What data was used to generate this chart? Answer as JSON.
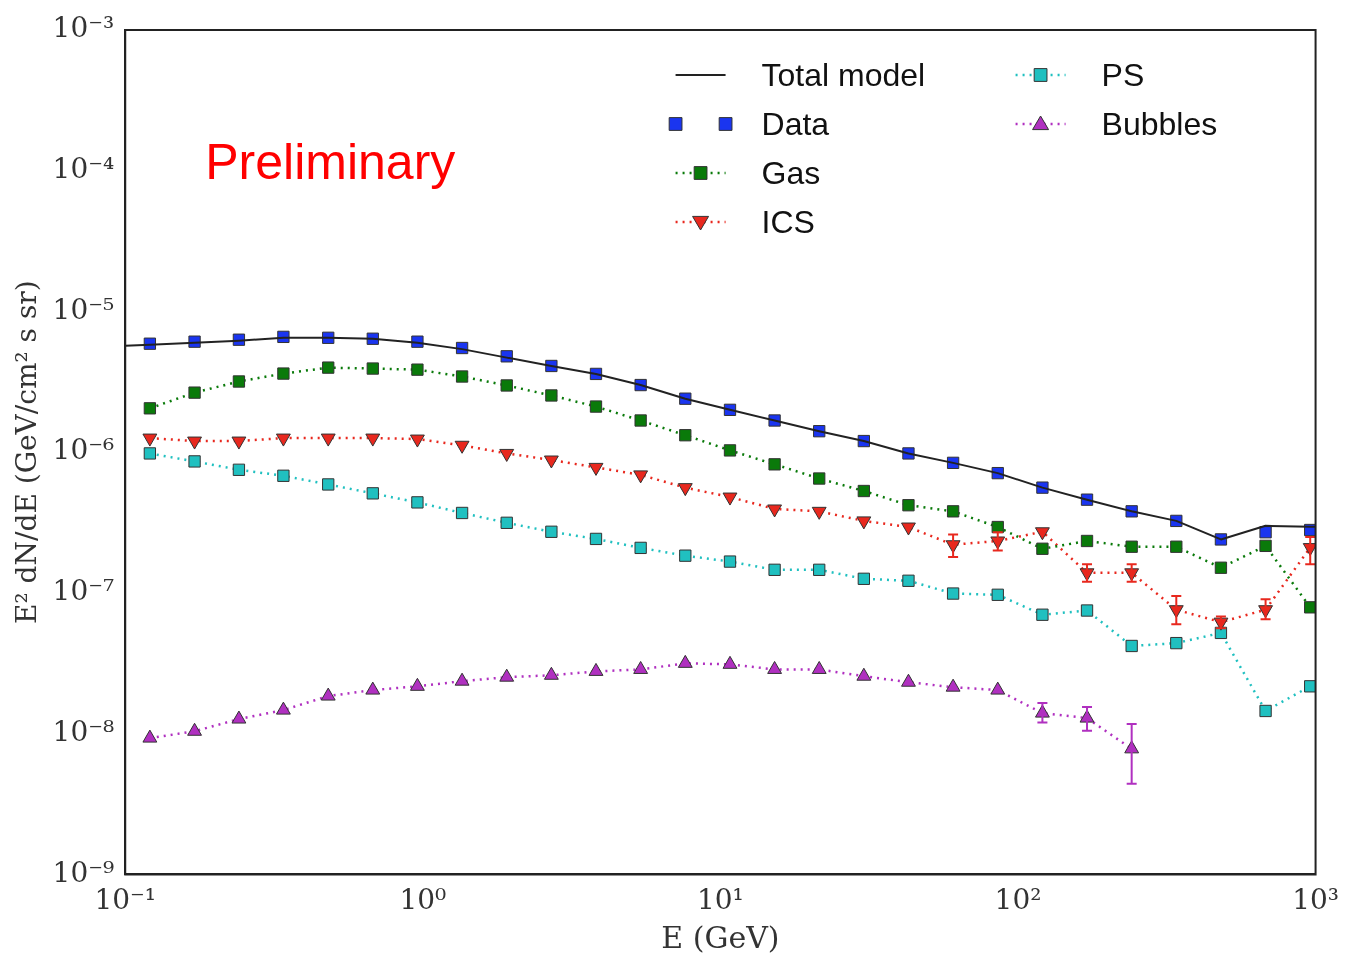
{
  "chart_data": {
    "type": "line",
    "xlabel": "E (GeV)",
    "ylabel": "E² dN/dE (GeV/cm² s sr)",
    "log": "xy",
    "grid": false,
    "legend": "top right",
    "xlim": [
      0.1,
      1000
    ],
    "ylim": [
      1e-09,
      0.001
    ],
    "xticks": [
      {
        "value": 0.1,
        "label": "10⁻¹"
      },
      {
        "value": 1,
        "label": "10⁰"
      },
      {
        "value": 10,
        "label": "10¹"
      },
      {
        "value": 100,
        "label": "10²"
      },
      {
        "value": 1000,
        "label": "10³"
      }
    ],
    "yticks": [
      {
        "value": 1e-09,
        "label": "10⁻⁹"
      },
      {
        "value": 1e-08,
        "label": "10⁻⁸"
      },
      {
        "value": 1e-07,
        "label": "10⁻⁷"
      },
      {
        "value": 1e-06,
        "label": "10⁻⁶"
      },
      {
        "value": 1e-05,
        "label": "10⁻⁵"
      },
      {
        "value": 0.0001,
        "label": "10⁻⁴"
      },
      {
        "value": 0.001,
        "label": "10⁻³"
      }
    ],
    "x": [
      0.121,
      0.171,
      0.241,
      0.34,
      0.481,
      0.679,
      0.959,
      1.355,
      1.914,
      2.704,
      3.819,
      5.395,
      7.621,
      10.77,
      15.21,
      21.48,
      30.34,
      42.85,
      60.53,
      85.51,
      120.8,
      170.6,
      241,
      340.4,
      480.8,
      679.2,
      959.4
    ],
    "annotations": [
      "Preliminary"
    ],
    "series": [
      {
        "name": "Total model",
        "type": "line",
        "color": "#222222",
        "marker": "none",
        "line_style": "solid",
        "x": [
          0.1,
          0.121,
          0.171,
          0.241,
          0.34,
          0.481,
          0.679,
          0.959,
          1.355,
          1.914,
          2.704,
          3.819,
          5.395,
          7.621,
          10.77,
          15.21,
          21.48,
          30.34,
          42.85,
          60.53,
          85.51,
          120.8,
          170.6,
          241,
          340.4,
          480.8,
          679.2,
          959.4,
          1000
        ],
        "values": [
          5.7e-06,
          5.8e-06,
          6e-06,
          6.2e-06,
          6.5e-06,
          6.5e-06,
          6.4e-06,
          6e-06,
          5.4e-06,
          4.7e-06,
          4.1e-06,
          3.6e-06,
          3e-06,
          2.4e-06,
          2e-06,
          1.68e-06,
          1.41e-06,
          1.2e-06,
          9.8e-07,
          8.4e-07,
          7.1e-07,
          5.6e-07,
          4.6e-07,
          3.8e-07,
          3.25e-07,
          2.4e-07,
          3e-07,
          2.95e-07,
          2.95e-07
        ]
      },
      {
        "name": "Data",
        "type": "scatter",
        "color": "#1a35f0",
        "marker": "square",
        "values": [
          5.9e-06,
          6.1e-06,
          6.3e-06,
          6.6e-06,
          6.5e-06,
          6.4e-06,
          6.1e-06,
          5.5e-06,
          4.8e-06,
          4.1e-06,
          3.6e-06,
          3e-06,
          2.4e-06,
          2e-06,
          1.68e-06,
          1.41e-06,
          1.2e-06,
          9.8e-07,
          8.4e-07,
          7.1e-07,
          5.6e-07,
          4.6e-07,
          3.8e-07,
          3.25e-07,
          2.4e-07,
          2.7e-07,
          2.8e-07
        ]
      },
      {
        "name": "Gas",
        "type": "line",
        "color": "#0a7a0a",
        "marker": "square",
        "line_style": "dotted",
        "values": [
          2.05e-06,
          2.65e-06,
          3.18e-06,
          3.62e-06,
          3.99e-06,
          3.93e-06,
          3.86e-06,
          3.45e-06,
          2.98e-06,
          2.53e-06,
          2.11e-06,
          1.68e-06,
          1.32e-06,
          1.03e-06,
          8.2e-07,
          6.5e-07,
          5.3e-07,
          4.2e-07,
          3.8e-07,
          2.94e-07,
          2.06e-07,
          2.34e-07,
          2.13e-07,
          2.13e-07,
          1.51e-07,
          2.16e-07,
          7.9e-08
        ]
      },
      {
        "name": "ICS",
        "type": "line",
        "color": "#e8281e",
        "marker": "triangle_down",
        "line_style": "dotted",
        "values": [
          1.26e-06,
          1.2e-06,
          1.2e-06,
          1.26e-06,
          1.26e-06,
          1.26e-06,
          1.24e-06,
          1.12e-06,
          9.8e-07,
          8.8e-07,
          7.8e-07,
          6.9e-07,
          5.6e-07,
          4.8e-07,
          3.95e-07,
          3.8e-07,
          3.25e-07,
          2.94e-07,
          2.2e-07,
          2.34e-07,
          2.72e-07,
          1.39e-07,
          1.39e-07,
          7.6e-08,
          6.2e-08,
          7.6e-08,
          2.1e-07
        ],
        "errors": [
          null,
          null,
          null,
          null,
          null,
          null,
          null,
          null,
          null,
          null,
          null,
          null,
          null,
          null,
          null,
          null,
          null,
          null,
          [
            1.8e-07,
            2.6e-07
          ],
          [
            2e-07,
            2.7e-07
          ],
          null,
          [
            1.2e-07,
            1.6e-07
          ],
          [
            1.2e-07,
            1.6e-07
          ],
          [
            6e-08,
            9.5e-08
          ],
          [
            5.6e-08,
            6.8e-08
          ],
          [
            6.5e-08,
            9e-08
          ],
          [
            1.6e-07,
            2.5e-07
          ]
        ]
      },
      {
        "name": "PS",
        "type": "line",
        "color": "#20c0c0",
        "marker": "square",
        "line_style": "dotted",
        "values": [
          9.8e-07,
          8.6e-07,
          7.5e-07,
          6.8e-07,
          5.9e-07,
          5.1e-07,
          4.4e-07,
          3.7e-07,
          3.15e-07,
          2.72e-07,
          2.42e-07,
          2.09e-07,
          1.84e-07,
          1.67e-07,
          1.46e-07,
          1.46e-07,
          1.26e-07,
          1.22e-07,
          9.9e-08,
          9.7e-08,
          7e-08,
          7.5e-08,
          4.2e-08,
          4.4e-08,
          5.2e-08,
          1.45e-08,
          2.17e-08
        ]
      },
      {
        "name": "Bubbles",
        "type": "line",
        "color": "#b030c0",
        "marker": "triangle",
        "line_style": "dotted",
        "values": [
          9.3e-09,
          1.04e-08,
          1.27e-08,
          1.47e-08,
          1.85e-08,
          2.04e-08,
          2.17e-08,
          2.36e-08,
          2.52e-08,
          2.6e-08,
          2.77e-08,
          2.86e-08,
          3.16e-08,
          3.11e-08,
          2.86e-08,
          2.86e-08,
          2.56e-08,
          2.32e-08,
          2.14e-08,
          2.04e-08,
          1.4e-08,
          1.29e-08,
          7.8e-09,
          null,
          null,
          null,
          null
        ],
        "errors": [
          null,
          null,
          null,
          null,
          null,
          null,
          null,
          null,
          null,
          null,
          null,
          null,
          null,
          null,
          null,
          null,
          null,
          null,
          null,
          null,
          [
            1.2e-08,
            1.65e-08
          ],
          [
            1.05e-08,
            1.55e-08
          ],
          [
            4.4e-09,
            1.17e-08
          ],
          null,
          null,
          null,
          null
        ]
      }
    ]
  }
}
